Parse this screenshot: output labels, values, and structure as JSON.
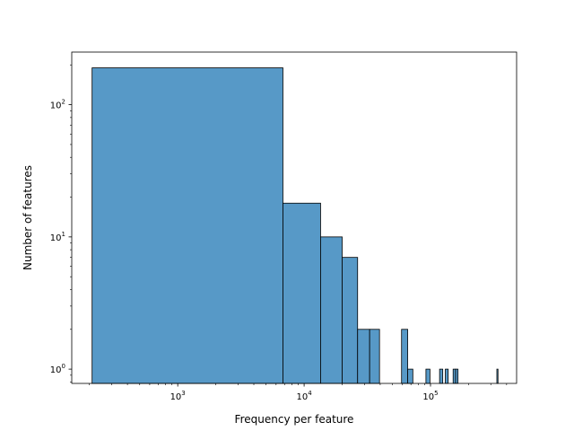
{
  "chart_data": {
    "type": "bar",
    "subtype": "histogram",
    "title": "",
    "xlabel": "Frequency per feature",
    "ylabel": "Number of features",
    "x_scale": "log",
    "y_scale": "log",
    "xlim": [
      145,
      480000
    ],
    "ylim": [
      0.78,
      250
    ],
    "grid": false,
    "bar_color": "#5799c7",
    "edge_color": "#000000",
    "x_ticks": [
      {
        "value": 1000,
        "base": "10",
        "exp": "3"
      },
      {
        "value": 10000,
        "base": "10",
        "exp": "4"
      },
      {
        "value": 100000,
        "base": "10",
        "exp": "5"
      }
    ],
    "y_ticks": [
      {
        "value": 1,
        "base": "10",
        "exp": "0"
      },
      {
        "value": 10,
        "base": "10",
        "exp": "1"
      },
      {
        "value": 100,
        "base": "10",
        "exp": "2"
      }
    ],
    "bins": [
      {
        "x0": 210,
        "x1": 6800,
        "count": 190
      },
      {
        "x0": 6800,
        "x1": 13500,
        "count": 18
      },
      {
        "x0": 13500,
        "x1": 20000,
        "count": 10
      },
      {
        "x0": 20000,
        "x1": 26500,
        "count": 7
      },
      {
        "x0": 26500,
        "x1": 33000,
        "count": 2
      },
      {
        "x0": 33000,
        "x1": 39500,
        "count": 2
      },
      {
        "x0": 59000,
        "x1": 66000,
        "count": 2
      },
      {
        "x0": 66000,
        "x1": 72500,
        "count": 1
      },
      {
        "x0": 92000,
        "x1": 99000,
        "count": 1
      },
      {
        "x0": 118000,
        "x1": 125000,
        "count": 1
      },
      {
        "x0": 131000,
        "x1": 138000,
        "count": 1
      },
      {
        "x0": 151000,
        "x1": 158000,
        "count": 1
      },
      {
        "x0": 158000,
        "x1": 165000,
        "count": 1
      },
      {
        "x0": 335000,
        "x1": 342000,
        "count": 1
      }
    ]
  }
}
